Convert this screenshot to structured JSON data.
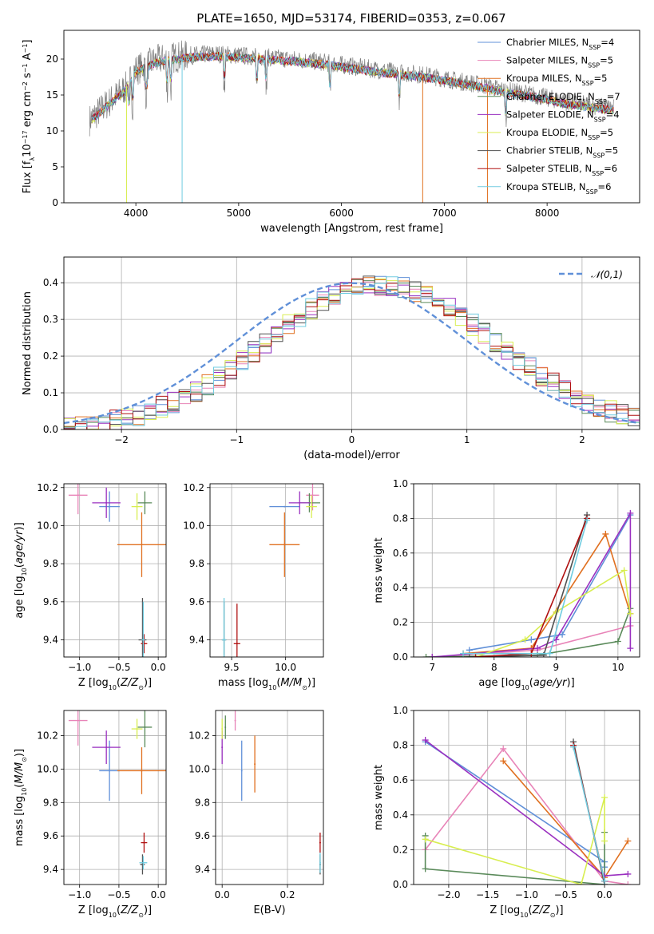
{
  "figure_title": "PLATE=1650, MJD=53174, FIBERID=0353, z=0.067",
  "models": [
    {
      "name": "Chabrier MILES",
      "nssp": "4",
      "color": "#6090d8"
    },
    {
      "name": "Salpeter MILES",
      "nssp": "5",
      "color": "#e884b8"
    },
    {
      "name": "Kroupa MILES",
      "nssp": "5",
      "color": "#e07020"
    },
    {
      "name": "Chabrier ELODIE",
      "nssp": "7",
      "color": "#5a8a5a"
    },
    {
      "name": "Salpeter ELODIE",
      "nssp": "4",
      "color": "#9a30c0"
    },
    {
      "name": "Kroupa ELODIE",
      "nssp": "5",
      "color": "#d8ee50"
    },
    {
      "name": "Chabrier STELIB",
      "nssp": "5",
      "color": "#505050"
    },
    {
      "name": "Salpeter STELIB",
      "nssp": "6",
      "color": "#b01010"
    },
    {
      "name": "Kroupa STELIB",
      "nssp": "6",
      "color": "#70cce0"
    }
  ],
  "chart_data": [
    {
      "id": "spectrum",
      "type": "line",
      "xlabel": "wavelength [Angstrom, rest frame]",
      "ylabel": "Flux [f_λ 10^-17 erg cm^-2 s^-1 A^-1]",
      "xlim": [
        3300,
        8900
      ],
      "ylim": [
        0,
        24
      ],
      "xticks": [
        4000,
        5000,
        6000,
        7000,
        8000
      ],
      "yticks": [
        0,
        5,
        10,
        15,
        20
      ],
      "grid": false,
      "legend": "top-right",
      "data_range": [
        3550,
        8650
      ],
      "continuum": [
        [
          3550,
          11.5
        ],
        [
          3700,
          13.5
        ],
        [
          3900,
          16
        ],
        [
          4000,
          18.5
        ],
        [
          4200,
          19.8
        ],
        [
          4400,
          20.3
        ],
        [
          4600,
          20.6
        ],
        [
          4800,
          20.7
        ],
        [
          5000,
          20.5
        ],
        [
          5200,
          20.3
        ],
        [
          5400,
          20.1
        ],
        [
          5600,
          19.9
        ],
        [
          5800,
          19.6
        ],
        [
          6000,
          19.2
        ],
        [
          6200,
          18.8
        ],
        [
          6400,
          18.4
        ],
        [
          6600,
          18.1
        ],
        [
          6800,
          17.8
        ],
        [
          7000,
          17.3
        ],
        [
          7200,
          16.8
        ],
        [
          7400,
          16.3
        ],
        [
          7600,
          15.6
        ],
        [
          7800,
          15.2
        ],
        [
          8000,
          14.6
        ],
        [
          8200,
          14.0
        ],
        [
          8400,
          13.6
        ],
        [
          8650,
          13.2
        ]
      ]
    },
    {
      "id": "residuals",
      "type": "histogram",
      "xlabel": "(data-model)/error",
      "ylabel": "Normed distribution",
      "xlim": [
        -2.5,
        2.5
      ],
      "ylim": [
        0,
        0.47
      ],
      "xticks": [
        -2,
        -1,
        0,
        1,
        2
      ],
      "yticks": [
        0.0,
        0.1,
        0.2,
        0.3,
        0.4
      ],
      "grid": true,
      "legend": "top-right",
      "reference": {
        "name": "𝒩(0,1)",
        "color": "#6090d8",
        "style": "dashed"
      },
      "bin_width": 0.1,
      "bin_start": -2.5
    },
    {
      "id": "age-vs-Z",
      "type": "scatter",
      "xlabel": "Z [log10(Z/Z⊙)]",
      "ylabel": "age  [log10(age/yr)]",
      "xlim": [
        -1.2,
        0.1
      ],
      "ylim": [
        9.31,
        10.22
      ],
      "xticks": [
        -1.0,
        -0.5,
        0.0
      ],
      "yticks": [
        9.4,
        9.6,
        9.8,
        10.0,
        10.2
      ],
      "grid": true,
      "points": [
        {
          "model": "Chabrier MILES",
          "x": -0.62,
          "y": 10.1,
          "xerr": 0.13,
          "yerr": 0.08
        },
        {
          "model": "Salpeter MILES",
          "x": -1.02,
          "y": 10.16,
          "xerr": 0.12,
          "yerr": 0.1
        },
        {
          "model": "Kroupa MILES",
          "x": -0.21,
          "y": 9.9,
          "xerr": 0.31,
          "yerr": 0.17
        },
        {
          "model": "Chabrier ELODIE",
          "x": -0.17,
          "y": 10.12,
          "xerr": 0.09,
          "yerr": 0.06
        },
        {
          "model": "Salpeter ELODIE",
          "x": -0.66,
          "y": 10.12,
          "xerr": 0.18,
          "yerr": 0.08
        },
        {
          "model": "Kroupa ELODIE",
          "x": -0.27,
          "y": 10.1,
          "xerr": 0.07,
          "yerr": 0.07
        },
        {
          "model": "Chabrier STELIB",
          "x": -0.2,
          "y": 9.4,
          "xerr": 0.05,
          "yerr": 0.22
        },
        {
          "model": "Salpeter STELIB",
          "x": -0.18,
          "y": 9.38,
          "xerr": 0.04,
          "yerr": 0.05
        },
        {
          "model": "Kroupa STELIB",
          "x": -0.19,
          "y": 9.4,
          "xerr": 0.02,
          "yerr": 0.2
        }
      ]
    },
    {
      "id": "age-vs-mass",
      "type": "scatter",
      "xlabel": "mass [log10(M/M⊙)]",
      "ylabel": "",
      "xlim": [
        9.3,
        10.35
      ],
      "ylim": [
        9.31,
        10.22
      ],
      "xticks": [
        9.5,
        10.0
      ],
      "yticks": [
        9.4,
        9.6,
        9.8,
        10.0,
        10.2
      ],
      "grid": true,
      "points": [
        {
          "model": "Chabrier MILES",
          "x": 9.99,
          "y": 10.1,
          "xerr": 0.14,
          "yerr": 0.0
        },
        {
          "model": "Salpeter MILES",
          "x": 10.25,
          "y": 10.16,
          "xerr": 0.06,
          "yerr": 0.08
        },
        {
          "model": "Kroupa MILES",
          "x": 9.99,
          "y": 9.9,
          "xerr": 0.14,
          "yerr": 0.17
        },
        {
          "model": "Chabrier ELODIE",
          "x": 10.22,
          "y": 10.12,
          "xerr": 0.1,
          "yerr": 0.05
        },
        {
          "model": "Salpeter ELODIE",
          "x": 10.13,
          "y": 10.12,
          "xerr": 0.1,
          "yerr": 0.06
        },
        {
          "model": "Kroupa ELODIE",
          "x": 10.24,
          "y": 10.1,
          "xerr": 0.05,
          "yerr": 0.06
        },
        {
          "model": "Chabrier STELIB",
          "x": 9.43,
          "y": 9.4,
          "xerr": 0.02,
          "yerr": 0.2
        },
        {
          "model": "Salpeter STELIB",
          "x": 9.55,
          "y": 9.38,
          "xerr": 0.03,
          "yerr": 0.21
        },
        {
          "model": "Kroupa STELIB",
          "x": 9.43,
          "y": 9.4,
          "xerr": 0.02,
          "yerr": 0.22
        }
      ]
    },
    {
      "id": "weight-vs-age",
      "type": "line",
      "xlabel": "age  [log10(age/yr)]",
      "ylabel": "mass weight",
      "xlim": [
        6.7,
        10.35
      ],
      "ylim": [
        0,
        1.0
      ],
      "xticks": [
        7,
        8,
        9,
        10
      ],
      "yticks": [
        0.0,
        0.2,
        0.4,
        0.6,
        0.8,
        1.0
      ],
      "grid": true,
      "series": [
        {
          "model": "Chabrier MILES",
          "x": [
            7.6,
            8.6,
            9.1,
            10.2
          ],
          "y": [
            0.04,
            0.1,
            0.13,
            0.82
          ]
        },
        {
          "model": "Salpeter MILES",
          "x": [
            7.0,
            8.7,
            10.2
          ],
          "y": [
            0.0,
            0.04,
            0.18
          ]
        },
        {
          "model": "Kroupa MILES",
          "x": [
            7.5,
            8.6,
            9.8,
            10.2
          ],
          "y": [
            0.02,
            0.05,
            0.71,
            0.25
          ]
        },
        {
          "model": "Chabrier ELODIE",
          "x": [
            6.9,
            8.7,
            10.0,
            10.2
          ],
          "y": [
            0.0,
            0.01,
            0.09,
            0.28
          ]
        },
        {
          "model": "Salpeter ELODIE",
          "x": [
            7.0,
            8.7,
            9.0,
            10.2,
            10.2
          ],
          "y": [
            0.0,
            0.05,
            0.1,
            0.83,
            0.05
          ]
        },
        {
          "model": "Kroupa ELODIE",
          "x": [
            7.7,
            8.5,
            9.0,
            10.1,
            10.2
          ],
          "y": [
            0.0,
            0.1,
            0.26,
            0.5,
            0.25
          ]
        },
        {
          "model": "Chabrier STELIB",
          "x": [
            7.6,
            8.8,
            9.5
          ],
          "y": [
            0.0,
            0.01,
            0.82
          ]
        },
        {
          "model": "Salpeter STELIB",
          "x": [
            7.7,
            8.6,
            9.5
          ],
          "y": [
            0.0,
            0.02,
            0.8
          ]
        },
        {
          "model": "Kroupa STELIB",
          "x": [
            7.5,
            8.9,
            9.5
          ],
          "y": [
            0.02,
            0.02,
            0.79
          ]
        }
      ]
    },
    {
      "id": "mass-vs-Z",
      "type": "scatter",
      "xlabel": "Z [log10(Z/Z⊙)]",
      "ylabel": "mass [log10(M/M⊙)]",
      "xlim": [
        -1.2,
        0.1
      ],
      "ylim": [
        9.31,
        10.35
      ],
      "xticks": [
        -1.0,
        -0.5,
        0.0
      ],
      "yticks": [
        9.4,
        9.6,
        9.8,
        10.0,
        10.2
      ],
      "grid": true,
      "points": [
        {
          "model": "Chabrier MILES",
          "x": -0.62,
          "y": 9.99,
          "xerr": 0.13,
          "yerr": 0.18
        },
        {
          "model": "Salpeter MILES",
          "x": -1.02,
          "y": 10.29,
          "xerr": 0.12,
          "yerr": 0.15
        },
        {
          "model": "Kroupa MILES",
          "x": -0.21,
          "y": 9.99,
          "xerr": 0.31,
          "yerr": 0.14
        },
        {
          "model": "Chabrier ELODIE",
          "x": -0.17,
          "y": 10.25,
          "xerr": 0.09,
          "yerr": 0.12
        },
        {
          "model": "Salpeter ELODIE",
          "x": -0.66,
          "y": 10.13,
          "xerr": 0.18,
          "yerr": 0.1
        },
        {
          "model": "Kroupa ELODIE",
          "x": -0.27,
          "y": 10.24,
          "xerr": 0.07,
          "yerr": 0.06
        },
        {
          "model": "Chabrier STELIB",
          "x": -0.2,
          "y": 9.43,
          "xerr": 0.03,
          "yerr": 0.06
        },
        {
          "model": "Salpeter STELIB",
          "x": -0.18,
          "y": 9.56,
          "xerr": 0.04,
          "yerr": 0.06
        },
        {
          "model": "Kroupa STELIB",
          "x": -0.19,
          "y": 9.44,
          "xerr": 0.05,
          "yerr": 0.04
        }
      ]
    },
    {
      "id": "mass-vs-ebv",
      "type": "scatter",
      "xlabel": "E(B-V)",
      "ylabel": "",
      "xlim": [
        -0.02,
        0.31
      ],
      "ylim": [
        9.31,
        10.35
      ],
      "xticks": [
        0.0,
        0.2
      ],
      "yticks": [
        9.4,
        9.6,
        9.8,
        10.0,
        10.2
      ],
      "grid": true,
      "points": [
        {
          "model": "Chabrier MILES",
          "x": 0.06,
          "y": 9.99,
          "xerr": 0.0,
          "yerr": 0.18
        },
        {
          "model": "Salpeter MILES",
          "x": 0.04,
          "y": 10.29,
          "xerr": 0.0,
          "yerr": 0.06
        },
        {
          "model": "Kroupa MILES",
          "x": 0.1,
          "y": 10.03,
          "xerr": 0.0,
          "yerr": 0.17
        },
        {
          "model": "Chabrier ELODIE",
          "x": 0.01,
          "y": 10.25,
          "xerr": 0.0,
          "yerr": 0.07
        },
        {
          "model": "Salpeter ELODIE",
          "x": 0.0,
          "y": 10.13,
          "xerr": 0.0,
          "yerr": 0.1
        },
        {
          "model": "Kroupa ELODIE",
          "x": 0.0,
          "y": 10.24,
          "xerr": 0.0,
          "yerr": 0.06
        },
        {
          "model": "Chabrier STELIB",
          "x": 0.3,
          "y": 9.43,
          "xerr": 0.0,
          "yerr": 0.06
        },
        {
          "model": "Salpeter STELIB",
          "x": 0.3,
          "y": 9.56,
          "xerr": 0.0,
          "yerr": 0.06
        },
        {
          "model": "Kroupa STELIB",
          "x": 0.3,
          "y": 9.44,
          "xerr": 0.0,
          "yerr": 0.06
        }
      ]
    },
    {
      "id": "weight-vs-Z",
      "type": "line",
      "xlabel": "Z [log10(Z/Z⊙)]",
      "ylabel": "mass weight",
      "xlim": [
        -2.45,
        0.45
      ],
      "ylim": [
        0,
        1.0
      ],
      "xticks": [
        -2.0,
        -1.5,
        -1.0,
        -0.5,
        0.0
      ],
      "yticks": [
        0.0,
        0.2,
        0.4,
        0.6,
        0.8,
        1.0
      ],
      "grid": true,
      "series": [
        {
          "model": "Chabrier MILES",
          "x": [
            -2.3,
            0.0,
            0.0
          ],
          "y": [
            0.82,
            0.13,
            0.1
          ]
        },
        {
          "model": "Salpeter MILES",
          "x": [
            -2.3,
            -1.3,
            0.0,
            0.3
          ],
          "y": [
            0.2,
            0.78,
            0.02,
            0.0
          ]
        },
        {
          "model": "Kroupa MILES",
          "x": [
            -1.3,
            0.0,
            0.3
          ],
          "y": [
            0.71,
            0.04,
            0.25
          ]
        },
        {
          "model": "Chabrier ELODIE",
          "x": [
            -2.3,
            -2.3,
            0.0,
            0.0
          ],
          "y": [
            0.28,
            0.09,
            0.0,
            0.3
          ]
        },
        {
          "model": "Salpeter ELODIE",
          "x": [
            -2.3,
            0.0,
            0.3
          ],
          "y": [
            0.83,
            0.05,
            0.06
          ]
        },
        {
          "model": "Kroupa ELODIE",
          "x": [
            -2.3,
            -0.3,
            0.0,
            0.0
          ],
          "y": [
            0.26,
            0.0,
            0.5,
            0.25
          ]
        },
        {
          "model": "Chabrier STELIB",
          "x": [
            -0.4,
            0.0,
            0.0
          ],
          "y": [
            0.82,
            0.0,
            0.02
          ]
        },
        {
          "model": "Salpeter STELIB",
          "x": [
            -0.4,
            0.0
          ],
          "y": [
            0.8,
            0.02
          ]
        },
        {
          "model": "Kroupa STELIB",
          "x": [
            -0.4,
            0.0
          ],
          "y": [
            0.79,
            0.02
          ]
        }
      ]
    }
  ]
}
